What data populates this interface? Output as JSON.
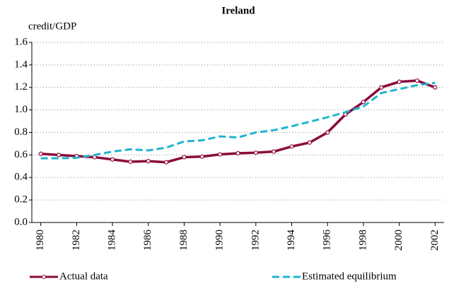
{
  "chart_data": {
    "type": "line",
    "title": "Ireland",
    "y_label": "credit/GDP",
    "x": [
      1980,
      1981,
      1982,
      1983,
      1984,
      1985,
      1986,
      1987,
      1988,
      1989,
      1990,
      1991,
      1992,
      1993,
      1994,
      1995,
      1996,
      1997,
      1998,
      1999,
      2000,
      2001,
      2002
    ],
    "xlim": [
      1979.5,
      2002.5
    ],
    "xticks": [
      1980,
      1982,
      1984,
      1986,
      1988,
      1990,
      1992,
      1994,
      1996,
      1998,
      2000,
      2002
    ],
    "ylim": [
      0,
      1.6
    ],
    "yticks": [
      {
        "value": 0,
        "label": "0.0"
      },
      0.2,
      0.4,
      0.6,
      0.8,
      {
        "value": 1,
        "label": "1.0"
      },
      1.2,
      1.4,
      1.6
    ],
    "grid": true,
    "legend": "bottom",
    "series": [
      {
        "name": "Actual data",
        "color": "#8b0a3c",
        "style": "solid",
        "markers": true,
        "values": [
          0.61,
          0.6,
          0.59,
          0.58,
          0.56,
          0.54,
          0.545,
          0.535,
          0.58,
          0.585,
          0.605,
          0.615,
          0.62,
          0.63,
          0.675,
          0.71,
          0.8,
          0.96,
          1.07,
          1.2,
          1.25,
          1.26,
          1.2
        ]
      },
      {
        "name": "Estimated equilibrium",
        "color": "#1fb5cf",
        "style": "dashed",
        "markers": false,
        "values": [
          0.57,
          0.57,
          0.575,
          0.6,
          0.63,
          0.65,
          0.64,
          0.665,
          0.72,
          0.73,
          0.765,
          0.755,
          0.8,
          0.82,
          0.855,
          0.895,
          0.935,
          0.98,
          1.03,
          1.15,
          1.185,
          1.22,
          1.24
        ]
      }
    ]
  }
}
